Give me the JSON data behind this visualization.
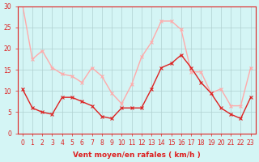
{
  "x": [
    0,
    1,
    2,
    3,
    4,
    5,
    6,
    7,
    8,
    9,
    10,
    11,
    12,
    13,
    14,
    15,
    16,
    17,
    18,
    19,
    20,
    21,
    22,
    23
  ],
  "wind_avg": [
    10.5,
    6,
    5,
    4.5,
    8.5,
    8.5,
    7.5,
    6.5,
    4,
    3.5,
    6,
    6,
    6,
    10.5,
    15.5,
    16.5,
    18.5,
    15.5,
    12,
    9.5,
    6,
    4.5,
    3.5,
    8.5
  ],
  "wind_gust": [
    30.5,
    17.5,
    19.5,
    15.5,
    14,
    13.5,
    12,
    15.5,
    13.5,
    9.5,
    7,
    11.5,
    18,
    21.5,
    26.5,
    26.5,
    24.5,
    14.5,
    14.5,
    9.5,
    10.5,
    6.5,
    6.5,
    15.5
  ],
  "bg_color": "#d4f5f5",
  "grid_color": "#b0d0d0",
  "line_avg_color": "#dd2222",
  "line_gust_color": "#ffaaaa",
  "xlabel": "Vent moyen/en rafales ( km/h )",
  "ylim": [
    0,
    30
  ],
  "yticks": [
    0,
    5,
    10,
    15,
    20,
    25,
    30
  ],
  "xticks": [
    0,
    1,
    2,
    3,
    4,
    5,
    6,
    7,
    8,
    9,
    10,
    11,
    12,
    13,
    14,
    15,
    16,
    17,
    18,
    19,
    20,
    21,
    22,
    23
  ]
}
